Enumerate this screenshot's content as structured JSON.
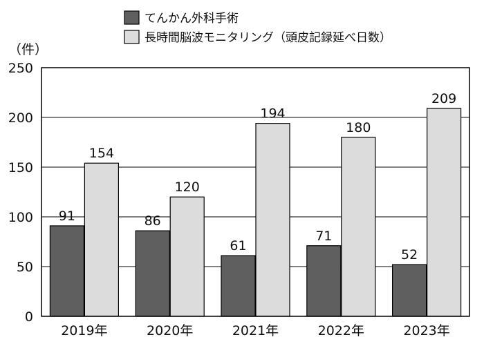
{
  "chart_data": {
    "type": "bar",
    "title": "",
    "xlabel": "",
    "ylabel": "（件）",
    "ylim": [
      0,
      250
    ],
    "yticks": [
      0,
      50,
      100,
      150,
      200,
      250
    ],
    "grid": true,
    "legend_position": "top",
    "categories": [
      "2019年",
      "2020年",
      "2021年",
      "2022年",
      "2023年"
    ],
    "series": [
      {
        "name": "てんかん外科手術",
        "color": "#5f5f5f",
        "values": [
          91,
          86,
          61,
          71,
          52
        ]
      },
      {
        "name": "長時間脳波モニタリング（頭皮記録延べ日数）",
        "color": "#dcdcdc",
        "values": [
          154,
          120,
          194,
          180,
          209
        ]
      }
    ]
  }
}
